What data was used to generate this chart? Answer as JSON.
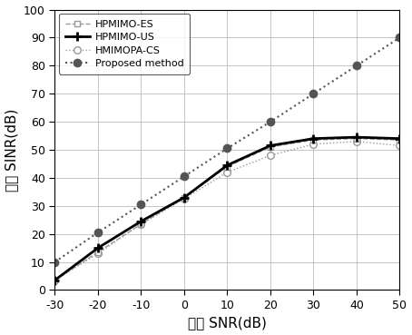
{
  "x": [
    -30,
    -20,
    -10,
    0,
    10,
    20,
    30,
    40,
    50
  ],
  "HPMIMO_ES": [
    3.5,
    13.5,
    23.5,
    33.0,
    44.0,
    51.0,
    53.5,
    54.0,
    53.5
  ],
  "HPMIMO_US": [
    3.5,
    15.0,
    24.5,
    33.0,
    44.5,
    51.5,
    54.0,
    54.5,
    54.0
  ],
  "HMIMOPA_CS": [
    3.5,
    13.0,
    23.5,
    32.5,
    42.0,
    48.0,
    52.0,
    53.0,
    51.5
  ],
  "Proposed": [
    10.0,
    20.5,
    30.5,
    40.5,
    50.5,
    60.0,
    70.0,
    80.0,
    90.0
  ],
  "xlabel": "输入 SNR(dB)",
  "ylabel": "输出 SINR(dB)",
  "xlim": [
    -30,
    50
  ],
  "ylim": [
    0,
    100
  ],
  "xticks": [
    -30,
    -20,
    -10,
    0,
    10,
    20,
    30,
    40,
    50
  ],
  "yticks": [
    0,
    10,
    20,
    30,
    40,
    50,
    60,
    70,
    80,
    90,
    100
  ],
  "legend_labels": [
    "HPMIMO-ES",
    "HPMIMO-US",
    "HMIMOPA-CS",
    "Proposed method"
  ],
  "color_es": "#999999",
  "color_us": "#000000",
  "color_cs": "#999999",
  "color_prop": "#555555",
  "background_color": "#ffffff",
  "grid_color": "#bbbbbb"
}
